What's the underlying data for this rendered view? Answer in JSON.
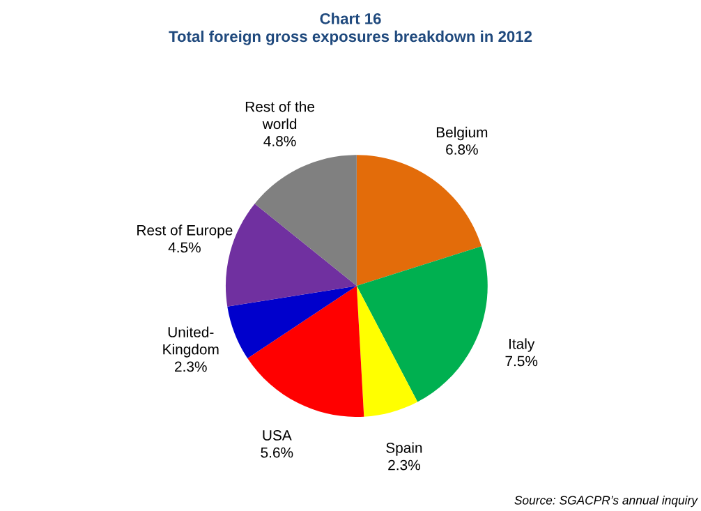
{
  "chart_data": {
    "type": "pie",
    "title": "Chart 16\nTotal foreign gross exposures breakdown in 2012",
    "categories": [
      "Belgium",
      "Italy",
      "Spain",
      "USA",
      "United-\nKingdom",
      "Rest of Europe",
      "Rest of the\nworld"
    ],
    "values": [
      6.8,
      7.5,
      2.3,
      5.6,
      2.3,
      4.5,
      4.8
    ],
    "value_labels": [
      "6.8%",
      "7.5%",
      "2.3%",
      "5.6%",
      "2.3%",
      "4.5%",
      "4.8%"
    ],
    "colors": [
      "#e36c0a",
      "#00b050",
      "#ffff00",
      "#ff0000",
      "#0000cc",
      "#7030a0",
      "#808080"
    ],
    "annotations": [
      "Source: SGACPR’s annual inquiry"
    ]
  }
}
